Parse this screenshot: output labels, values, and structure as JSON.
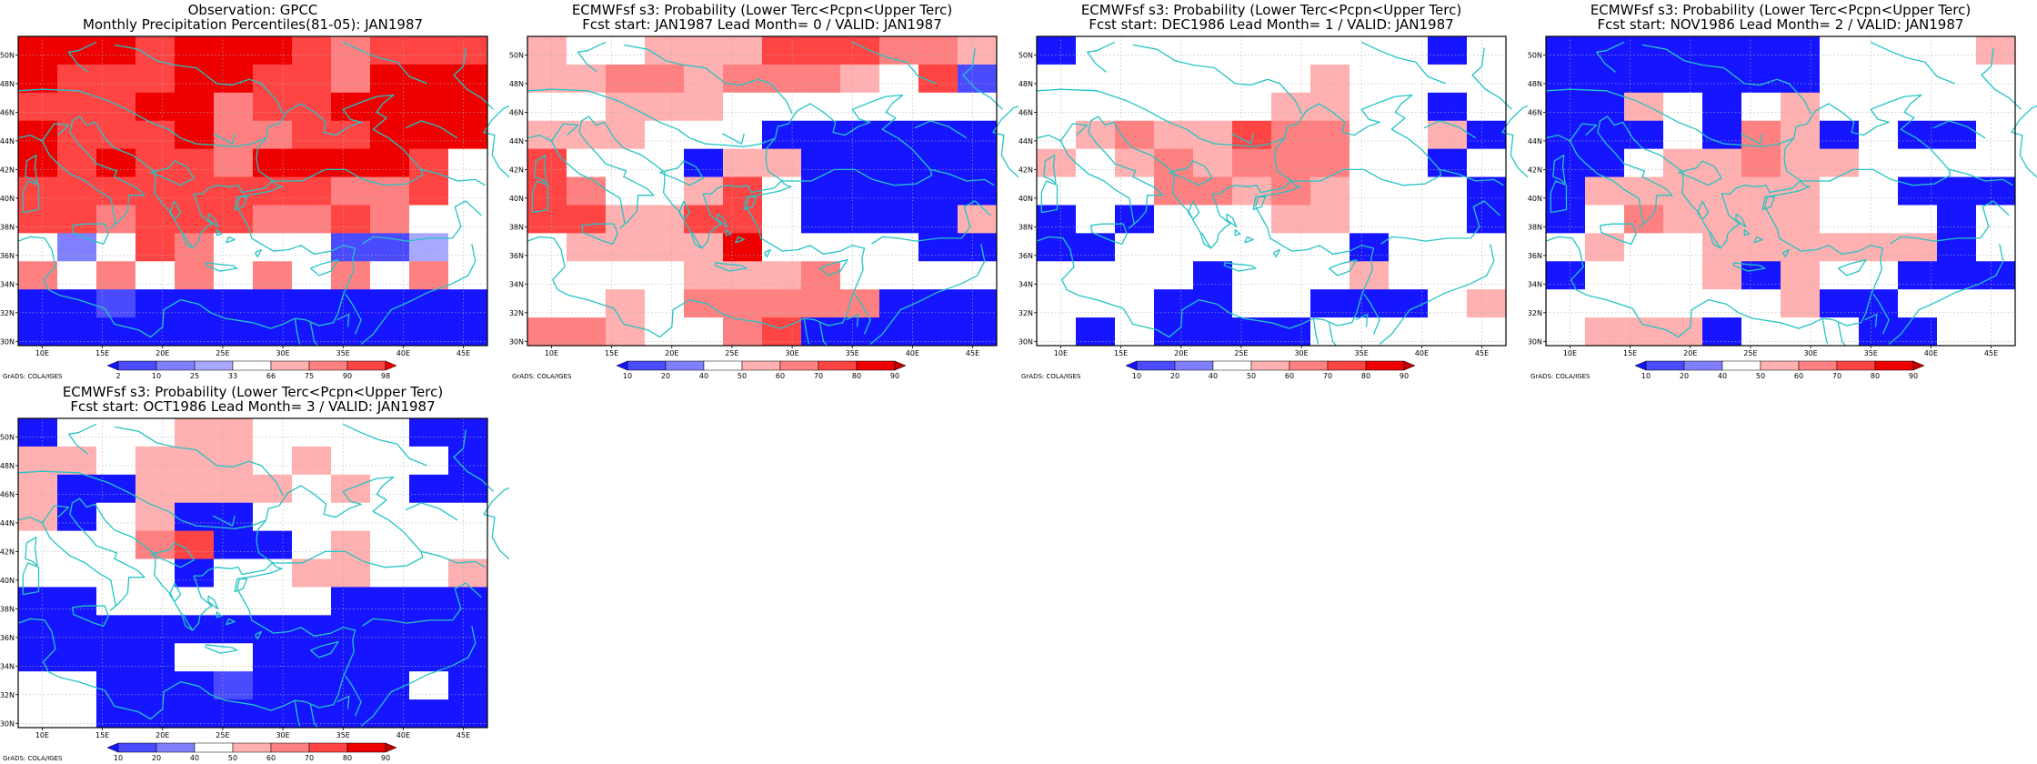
{
  "credit": "GrADS: COLA/IGES",
  "lon_ticks": [
    "10E",
    "15E",
    "20E",
    "25E",
    "30E",
    "35E",
    "40E",
    "45E"
  ],
  "lat_ticks": [
    "50N",
    "48N",
    "46N",
    "44N",
    "42N",
    "40N",
    "38N",
    "36N",
    "34N",
    "32N",
    "30N"
  ],
  "colors": {
    "coast": "#25c4c4",
    "obs_scale": [
      "#1515ff",
      "#4a4aff",
      "#8080ff",
      "#a8a8ff",
      "#ffffff",
      "#ffb0b0",
      "#ff8080",
      "#ff4444",
      "#ee0000"
    ],
    "prob_scale": [
      "#1515ff",
      "#4a4aff",
      "#8080ff",
      "#ffffff",
      "#ffb0b0",
      "#ff8080",
      "#ff4444",
      "#ee0000",
      "#c00000"
    ]
  },
  "panels": [
    {
      "id": "obs",
      "title_line1": "Observation: GPCC",
      "title_line2": "Monthly Precipitation Percentiles(81-05): JAN1987",
      "colorbar_labels": [
        "2",
        "10",
        "25",
        "33",
        "66",
        "75",
        "90",
        "98"
      ],
      "scale": "obs",
      "grid": [
        "888788876777",
        "877788776888",
        "777886778888",
        "877786677888",
        "878776888874",
        "777777776674",
        "776777667644",
        "424764441134",
        "646464646464",
        "001000000000",
        "000000000000"
      ]
    },
    {
      "id": "lead0",
      "title_line1": "ECMWFsf s3: Probability (Lower Terc<Pcpn<Upper Terc)",
      "title_line2": "Fcst start: JAN1987   Lead Month= 0 / VALID: JAN1987",
      "colorbar_labels": [
        "10",
        "20",
        "40",
        "50",
        "60",
        "70",
        "80",
        "90"
      ],
      "scale": "prob",
      "grid": [
        "433444666554",
        "445545554361",
        "334443333333",
        "444333000000",
        "633304400000",
        "653346300000",
        "664466300004",
        "344447333300",
        "333344453333",
        "334355555000",
        "554335600000"
      ]
    },
    {
      "id": "lead1",
      "title_line1": "ECMWFsf s3: Probability (Lower Terc<Pcpn<Upper Terc)",
      "title_line2": "Fcst start: DEC1986   Lead Month= 1 / VALID: JAN1987",
      "colorbar_labels": [
        "10",
        "20",
        "40",
        "50",
        "60",
        "70",
        "80",
        "90"
      ],
      "scale": "prob",
      "grid": [
        "033333333303",
        "333333343333",
        "333333443303",
        "345446553340",
        "434545553303",
        "333554543330",
        "030333443330",
        "003333330333",
        "333303334333",
        "333003300034",
        "303000033333"
      ]
    },
    {
      "id": "lead2",
      "title_line1": "ECMWFsf s3: Probability (Lower Terc<Pcpn<Upper Terc)",
      "title_line2": "Fcst start: NOV1986   Lead Month= 2 / VALID: JAN1987",
      "colorbar_labels": [
        "10",
        "20",
        "40",
        "50",
        "60",
        "70",
        "80",
        "90"
      ],
      "scale": "prob",
      "grid": [
        "000000033334",
        "000000033333",
        "004303433333",
        "000305403003",
        "003445443333",
        "044444433000",
        "035444433303",
        "343344444403",
        "033340433000",
        "333333400333",
        "344403330033"
      ]
    },
    {
      "id": "lead3",
      "title_line1": "ECMWFsf s3: Probability (Lower Terc<Pcpn<Upper Terc)",
      "title_line2": "Fcst start: OCT1986   Lead Month= 3 / VALID: JAN1987",
      "colorbar_labels": [
        "10",
        "20",
        "40",
        "50",
        "60",
        "70",
        "80",
        "90"
      ],
      "scale": "prob",
      "grid": [
        "033344333300",
        "443444343330",
        "400444434300",
        "403400333333",
        "333560034333",
        "333303344334",
        "003333330000",
        "000000000000",
        "000033000000",
        "330001000030",
        "330000000000"
      ]
    }
  ]
}
